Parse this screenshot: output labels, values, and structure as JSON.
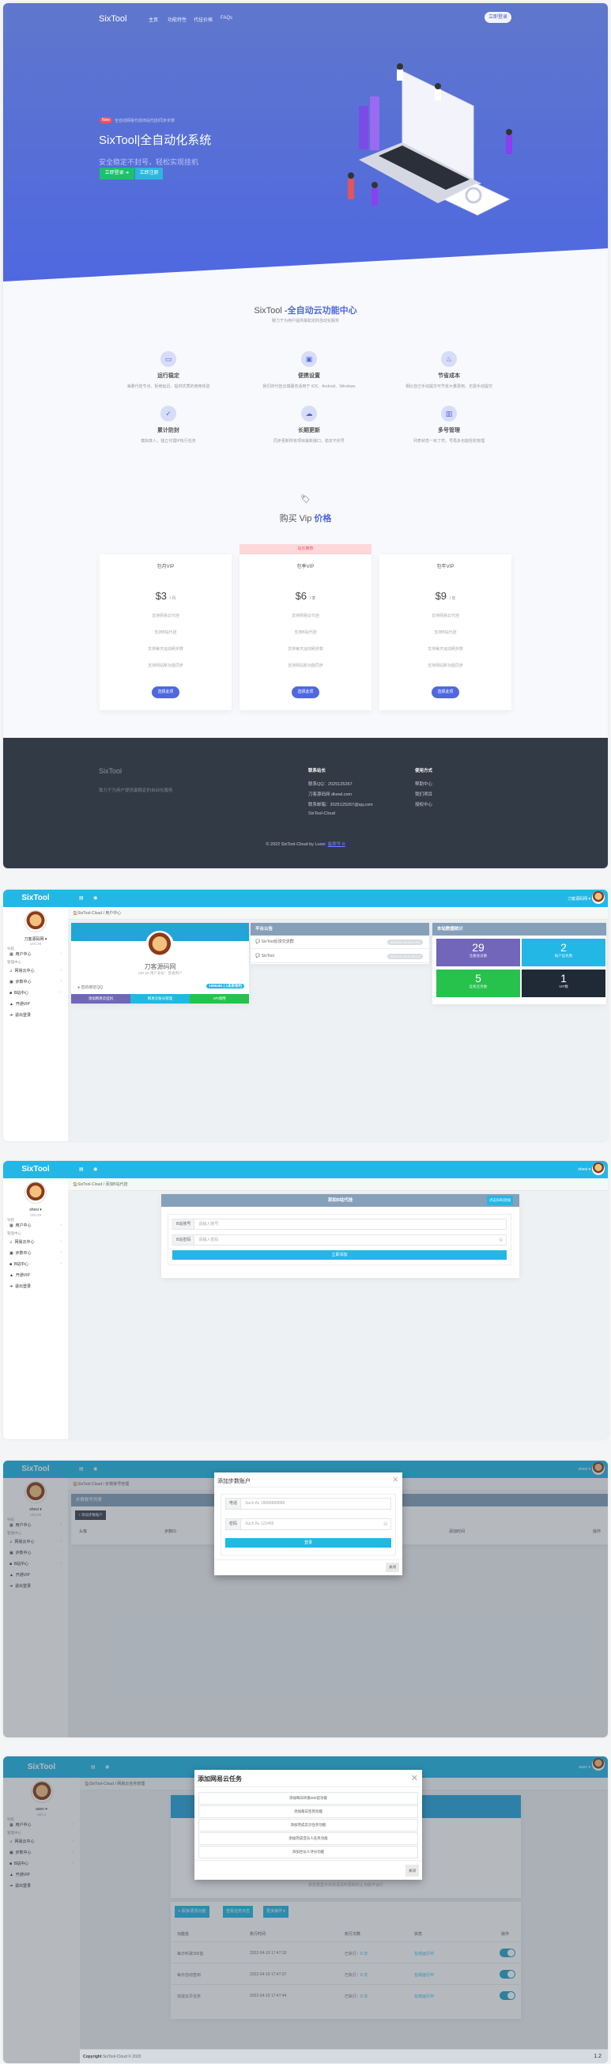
{
  "landing": {
    "nav": {
      "logo": "SixTool",
      "links": [
        "主页",
        "功能特性",
        "代挂价格",
        "FAQs"
      ],
      "login": "立即登录"
    },
    "hero": {
      "badge": "New",
      "tagline": "全自动网易代挂/B站代挂/同步步数",
      "title": "SixTool|全自动化系统",
      "subtitle": "安全稳定不封号，轻松实现挂机",
      "btn_login": "立即登录 ➜",
      "btn_register": "立即注册"
    },
    "features": {
      "title_plain": "SixTool ",
      "title_accent": "-全自动云功能中心",
      "subtitle": "致力于为用户提供最稳定的自动化服务",
      "items": [
        {
          "icon": "monitor-icon",
          "glyph": "▭",
          "title": "运行稳定",
          "desc": "海量代挂节点、拒绝延迟、提供优质的使用体验"
        },
        {
          "icon": "devices-icon",
          "glyph": "▣",
          "title": "便携设置",
          "desc": "我们的代挂云端服务适用于 iOS、Android、Windows"
        },
        {
          "icon": "flame-icon",
          "glyph": "♨",
          "title": "节省成本",
          "desc": "相比自己手动提交可节省大量费用，无需手动提交"
        },
        {
          "icon": "check-icon",
          "glyph": "✓",
          "title": "累计防封",
          "desc": "模拟真人，独立代理IP执行任务"
        },
        {
          "icon": "cloud-download-icon",
          "glyph": "☁",
          "title": "长期更新",
          "desc": "同步更新所有项目最新接口，稳定不封号"
        },
        {
          "icon": "columns-icon",
          "glyph": "▥",
          "title": "多号管理",
          "desc": "列表状态一目了然，号再多也能轻松管理"
        }
      ]
    },
    "pricing": {
      "title_plain": "购买 Vip ",
      "title_accent": "价格",
      "recommend": "站长推荐",
      "plans": [
        {
          "name": "包月VIP",
          "price": "$3",
          "unit": "/ 月",
          "features": [
            "支持网易云代挂",
            "支持B站代挂",
            "支持每天运动刷步数",
            "支持网站新功能同步"
          ],
          "button": "选择此项"
        },
        {
          "name": "包季VIP",
          "price": "$6",
          "unit": "/ 季",
          "features": [
            "支持网易云代挂",
            "支持B站代挂",
            "支持每天运动刷步数",
            "支持网站新功能同步"
          ],
          "button": "选择此项"
        },
        {
          "name": "包年VIP",
          "price": "$9",
          "unit": "/ 年",
          "features": [
            "支持网易云代挂",
            "支持B站代挂",
            "支持每天运动刷步数",
            "支持网站新功能同步"
          ],
          "button": "选择此项"
        }
      ]
    },
    "footer": {
      "brand": "SixTool",
      "desc": "致力于为用户提供最稳定的自动化服务",
      "contact_title": "联系站长",
      "contact": [
        "联系QQ：2025125267",
        "刀客源码网 dkewl.com",
        "联系邮箱：2025125267@qq.com",
        "SixTool-Cloud"
      ],
      "usage_title": "使用方式",
      "usage": [
        "帮助中心",
        "我们项目",
        "授权中心"
      ],
      "copyright": "© 2022 SixTool-Cloud by Luoci",
      "icp": "备案号-B"
    }
  },
  "sidebar": {
    "nav_label": "导航",
    "user_center": "用户中心",
    "manage_label": "管理中心",
    "netease": "网易云中心",
    "steps": "步数中心",
    "bili": "B站中心",
    "vip": "开通VIP",
    "logout": "退出登录"
  },
  "dashboard": {
    "logo": "SixTool",
    "user": "刀客源码网",
    "uid": "UID:29",
    "top_user": "刀客源码网 ▾",
    "breadcrumb": "🏠SixTool-Cloud / 用户中心",
    "profile": {
      "name": "刀客源码网",
      "meta": "UID:29  用户身份：普通用户",
      "qq_label": "您的绑定QQ",
      "qq_value": "1995461 | 1未来有约",
      "buttons": [
        "添加网易云挂机",
        "网易云账号管理",
        "API调用"
      ]
    },
    "announcements": {
      "title": "平台公告",
      "items": [
        {
          "text": "SixTool反馈交流群",
          "time": "2022-04-19 18:21:02"
        },
        {
          "text": "SixTool",
          "time": "2022-04-19 17:50:23"
        }
      ]
    },
    "stats": {
      "title": "本站数据统计",
      "tiles": [
        {
          "value": "29",
          "label": "注册会员数",
          "color": "#7266ba"
        },
        {
          "value": "2",
          "label": "账户挂机数",
          "color": "#23b7e5"
        },
        {
          "value": "5",
          "label": "挂机任务数",
          "color": "#27c24c"
        },
        {
          "value": "1",
          "label": "VIP数",
          "color": "#1f2a36"
        }
      ]
    }
  },
  "bili": {
    "user": "shesi",
    "uid": "UID:29",
    "top_user": "shesi ▾",
    "breadcrumb": "🏠SixTool-Cloud / 添加B站代挂",
    "title": "添加B站代挂",
    "scan_button": "点击扫码添加",
    "account_label": "B站账号",
    "account_placeholder": "请输入账号",
    "password_label": "B站密码",
    "password_placeholder": "请输入密码",
    "submit": "立即添加"
  },
  "steps": {
    "user": "shesi",
    "uid": "UID:29",
    "top_user": "shesi ▾",
    "breadcrumb": "🏠SixTool-Cloud / 步数账号管理",
    "list_title": "步数账号列表",
    "add_button": "+ 添加步数账户",
    "columns": [
      "头像",
      "步数ID",
      "添加时间",
      "操作"
    ],
    "modal": {
      "title": "添加步数账户",
      "phone_label": "电话",
      "phone_placeholder": "Such As 18888888888",
      "password_label": "密码",
      "password_placeholder": "Such As 123456",
      "submit": "登录",
      "close": "关闭"
    }
  },
  "netease": {
    "user": "asen",
    "uid": "UID:1",
    "top_user": "asen ▾",
    "breadcrumb": "🏠SixTool-Cloud / 网易云任务管理",
    "notice": "状态若显示失效请及时更新防止功能不运行",
    "buttons": [
      "+ 添加/更改功能",
      "查看任务日志",
      "更多操作 ▾"
    ],
    "columns": [
      "功能名",
      "执行时间",
      "执行次数",
      "状态",
      "操作"
    ],
    "rows": [
      {
        "name": "每日听歌300首",
        "time": "2022-04-19 17:47:33",
        "count_label": "已执行：",
        "count": "0 次",
        "status": "在线运行中",
        "enabled": true
      },
      {
        "name": "每日自动签到",
        "time": "2022-04-19 17:47:37",
        "count_label": "已执行：",
        "count": "0 次",
        "status": "在线运行中",
        "enabled": true
      },
      {
        "name": "完成云贝任务",
        "time": "2022-04-19 17:47:44",
        "count_label": "已执行：",
        "count": "0 次",
        "status": "在线运行中",
        "enabled": true
      }
    ],
    "modal": {
      "title": "添加网易云任务",
      "items": [
        "添加每日听歌300首功能",
        "添加每日签到功能",
        "添加完成云贝任务功能",
        "添加完成音乐人任务功能",
        "添加合伙人评分功能"
      ],
      "close": "关闭"
    },
    "copyright_strong": "Copyright",
    "copyright": " SixTool-Cloud © 2020",
    "version": "1.2"
  },
  "colors": {
    "brand": "#4f68e0",
    "admin_header": "#23b7e5",
    "panel_header": "#86a0ba",
    "success": "#27c24c"
  }
}
